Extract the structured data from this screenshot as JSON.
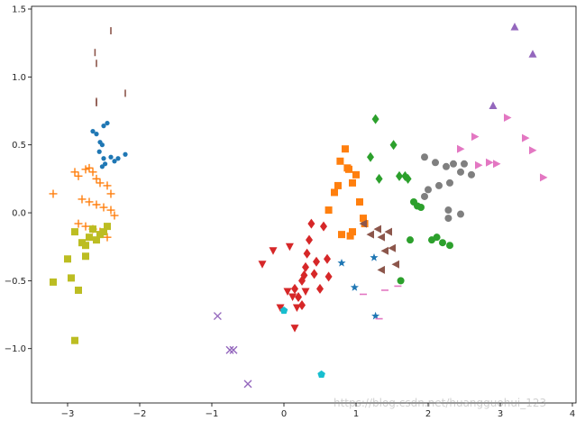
{
  "chart_data": {
    "type": "scatter",
    "title": "",
    "xlabel": "",
    "ylabel": "",
    "xlim": [
      -3.5,
      4.05
    ],
    "ylim": [
      -1.4,
      1.52
    ],
    "x_ticks": [
      -3,
      -2,
      -1,
      0,
      1,
      2,
      3,
      4
    ],
    "y_ticks": [
      -1.0,
      -0.5,
      0.0,
      0.5,
      1.0,
      1.5
    ],
    "x_tick_labels": [
      "−3",
      "−2",
      "−1",
      "0",
      "1",
      "2",
      "3",
      "4"
    ],
    "y_tick_labels": [
      "−1.0",
      "−0.5",
      "0.0",
      "0.5",
      "1.0",
      "1.5"
    ],
    "grid": false,
    "legend": "none",
    "series": [
      {
        "marker": "circle",
        "color": "#1f77b4",
        "x": [
          -2.65,
          -2.6,
          -2.55,
          -2.52,
          -2.56,
          -2.5,
          -2.4,
          -2.35,
          -2.48,
          -2.52,
          -2.3,
          -2.2,
          -2.5,
          -2.45
        ],
        "y": [
          0.6,
          0.58,
          0.52,
          0.5,
          0.45,
          0.4,
          0.41,
          0.38,
          0.36,
          0.34,
          0.4,
          0.43,
          0.64,
          0.66
        ]
      },
      {
        "marker": "plus",
        "color": "#ff7f0e",
        "x": [
          -3.2,
          -2.9,
          -2.85,
          -2.75,
          -2.7,
          -2.65,
          -2.6,
          -2.55,
          -2.45,
          -2.4,
          -2.8,
          -2.7,
          -2.6,
          -2.5,
          -2.4,
          -2.35,
          -2.85,
          -2.75,
          -2.65,
          -2.55,
          -2.45
        ],
        "y": [
          0.14,
          0.3,
          0.27,
          0.32,
          0.33,
          0.3,
          0.25,
          0.22,
          0.2,
          0.14,
          0.1,
          0.08,
          0.06,
          0.04,
          0.02,
          -0.02,
          -0.08,
          -0.1,
          -0.12,
          -0.14,
          -0.18
        ]
      },
      {
        "marker": "square",
        "color": "#ff7f0e",
        "x": [
          0.62,
          0.7,
          0.75,
          0.78,
          0.85,
          0.88,
          0.9,
          0.95,
          1.0,
          1.05,
          1.1,
          1.12,
          0.95,
          0.92,
          0.8
        ],
        "y": [
          0.02,
          0.15,
          0.2,
          0.38,
          0.47,
          0.33,
          0.32,
          0.22,
          0.28,
          0.08,
          -0.04,
          -0.08,
          -0.14,
          -0.17,
          -0.16
        ]
      },
      {
        "marker": "square",
        "color": "#bcbd22",
        "x": [
          -3.2,
          -3.0,
          -2.95,
          -2.9,
          -2.85,
          -2.8,
          -2.75,
          -2.7,
          -2.65,
          -2.6,
          -2.55,
          -2.5,
          -2.45,
          -2.75,
          -2.9
        ],
        "y": [
          -0.51,
          -0.34,
          -0.48,
          -0.14,
          -0.57,
          -0.22,
          -0.24,
          -0.18,
          -0.12,
          -0.2,
          -0.16,
          -0.14,
          -0.1,
          -0.32,
          -0.94
        ]
      },
      {
        "marker": "diamond",
        "color": "#d62728",
        "x": [
          0.15,
          0.2,
          0.25,
          0.28,
          0.3,
          0.32,
          0.35,
          0.38,
          0.42,
          0.45,
          0.5,
          0.55,
          0.6,
          0.62,
          0.25
        ],
        "y": [
          -0.56,
          -0.62,
          -0.5,
          -0.46,
          -0.4,
          -0.3,
          -0.2,
          -0.08,
          -0.45,
          -0.36,
          -0.56,
          -0.1,
          -0.34,
          -0.47,
          -0.68
        ]
      },
      {
        "marker": "triangle-down",
        "color": "#d62728",
        "x": [
          -0.3,
          -0.15,
          -0.05,
          0.05,
          0.15,
          0.18,
          0.3,
          0.12,
          0.08
        ],
        "y": [
          -0.38,
          -0.28,
          -0.7,
          -0.58,
          -0.85,
          -0.7,
          -0.58,
          -0.62,
          -0.25
        ]
      },
      {
        "marker": "diamond",
        "color": "#2ca02c",
        "x": [
          1.27,
          1.52,
          1.2,
          1.32,
          1.6,
          1.68,
          1.72
        ],
        "y": [
          0.69,
          0.5,
          0.41,
          0.25,
          0.27,
          0.27,
          0.25
        ]
      },
      {
        "marker": "circle",
        "color": "#2ca02c",
        "x": [
          1.8,
          1.85,
          1.9,
          2.05,
          2.12,
          2.2,
          2.3,
          1.75,
          1.62
        ],
        "y": [
          0.08,
          0.05,
          0.04,
          -0.2,
          -0.18,
          -0.22,
          -0.24,
          -0.2,
          -0.5
        ]
      },
      {
        "marker": "circle",
        "color": "#7f7f7f",
        "x": [
          1.95,
          2.1,
          2.25,
          2.35,
          2.5,
          2.45,
          2.6,
          2.3,
          2.15,
          2.0,
          1.95,
          2.28
        ],
        "y": [
          0.41,
          0.37,
          0.34,
          0.36,
          0.36,
          0.3,
          0.28,
          0.22,
          0.2,
          0.17,
          0.12,
          0.02
        ]
      },
      {
        "marker": "circle",
        "color": "#7f7f7f",
        "x": [
          2.28,
          2.45
        ],
        "y": [
          -0.04,
          -0.01
        ]
      },
      {
        "marker": "triangle-right",
        "color": "#e377c2",
        "x": [
          2.45,
          2.65,
          2.7,
          2.85,
          2.95,
          3.1,
          3.35,
          3.45,
          3.6
        ],
        "y": [
          0.47,
          0.56,
          0.35,
          0.37,
          0.36,
          0.7,
          0.55,
          0.46,
          0.26
        ]
      },
      {
        "marker": "triangle-up",
        "color": "#9467bd",
        "x": [
          2.9,
          3.2,
          3.45
        ],
        "y": [
          0.79,
          1.37,
          1.17
        ]
      },
      {
        "marker": "triangle-left",
        "color": "#8c564b",
        "x": [
          1.1,
          1.2,
          1.3,
          1.35,
          1.45,
          1.4,
          1.35,
          1.55,
          1.5
        ],
        "y": [
          -0.08,
          -0.16,
          -0.12,
          -0.18,
          -0.14,
          -0.28,
          -0.42,
          -0.38,
          -0.26
        ]
      },
      {
        "marker": "star",
        "color": "#1f77b4",
        "x": [
          0.8,
          0.98,
          1.25,
          1.27
        ],
        "y": [
          -0.37,
          -0.55,
          -0.33,
          -0.76
        ]
      },
      {
        "marker": "pentagon",
        "color": "#17becf",
        "x": [
          0.0,
          0.52
        ],
        "y": [
          -0.72,
          -1.19
        ]
      },
      {
        "marker": "x",
        "color": "#9467bd",
        "x": [
          -0.92,
          -0.75,
          -0.7,
          -0.5
        ],
        "y": [
          -0.76,
          -1.01,
          -1.01,
          -1.26
        ]
      },
      {
        "marker": "vline",
        "color": "#8c564b",
        "x": [
          -2.4,
          -2.62,
          -2.6,
          -2.6,
          -2.2,
          -2.6
        ],
        "y": [
          1.34,
          1.18,
          1.1,
          0.82,
          0.88,
          0.81
        ]
      },
      {
        "marker": "hline",
        "color": "#e377c2",
        "x": [
          1.1,
          1.4,
          1.58,
          1.32
        ],
        "y": [
          -0.6,
          -0.57,
          -0.54,
          -0.78
        ]
      }
    ]
  },
  "watermark": "https://blog.csdn.net/huangguohui_123"
}
